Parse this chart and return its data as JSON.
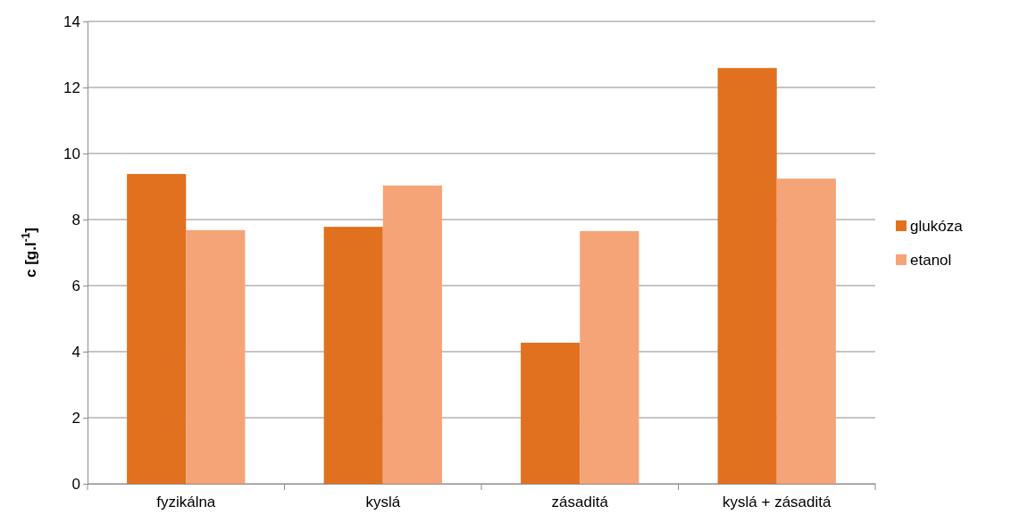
{
  "chart_data": {
    "type": "bar",
    "ylabel": "c [g.l$^{-1}$]",
    "categories": [
      "fyzikálna",
      "kyslá",
      "zásaditá",
      "kyslá + zásaditá"
    ],
    "series": [
      {
        "name": "glukóza",
        "color": "#e1711f",
        "values": [
          9.38,
          7.78,
          4.27,
          12.59
        ]
      },
      {
        "name": "etanol",
        "color": "#f5a477",
        "values": [
          7.68,
          9.03,
          7.65,
          9.24
        ]
      }
    ],
    "ylim": [
      0,
      14
    ],
    "yticks": [
      0,
      2,
      4,
      6,
      8,
      10,
      12,
      14
    ],
    "grid": "y",
    "legend": "right"
  }
}
